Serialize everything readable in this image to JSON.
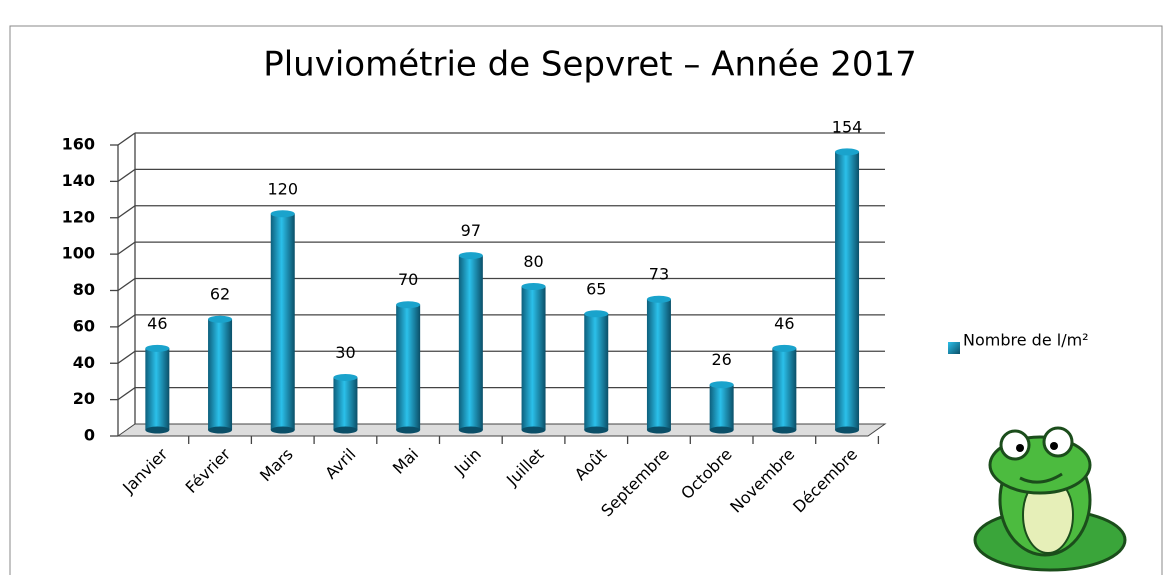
{
  "chart_data": {
    "type": "bar",
    "title": "Pluviométrie de Sepvret – Année 2017",
    "categories": [
      "Janvier",
      "Février",
      "Mars",
      "Avril",
      "Mai",
      "Juin",
      "Juillet",
      "Août",
      "Septembre",
      "Octobre",
      "Novembre",
      "Décembre"
    ],
    "series": [
      {
        "name": "Nombre de l/m²",
        "color": "#1aa3cc",
        "values": [
          46,
          62,
          120,
          30,
          70,
          97,
          80,
          65,
          73,
          26,
          46,
          154
        ]
      }
    ],
    "ylim": [
      0,
      160
    ],
    "yticks": [
      0,
      20,
      40,
      60,
      80,
      100,
      120,
      140,
      160
    ],
    "grid": true,
    "legend": "right"
  }
}
